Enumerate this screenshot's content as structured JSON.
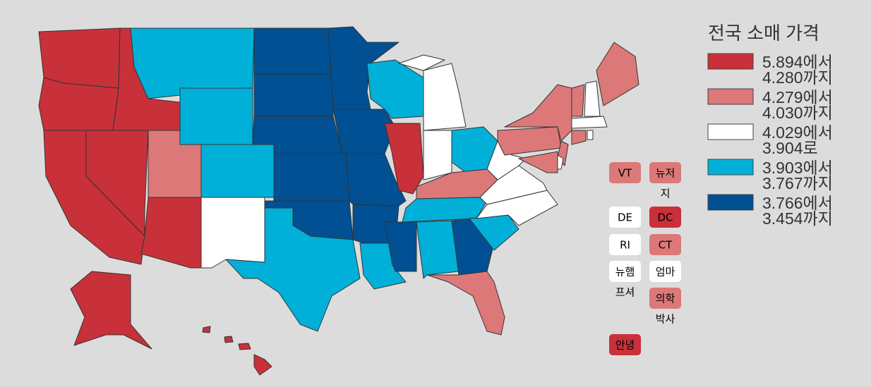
{
  "legend": {
    "title": "전국 소매 가격",
    "items": [
      {
        "color": "#c8313a",
        "lines": [
          "5.894에서",
          "4.280까지"
        ]
      },
      {
        "color": "#dd7878",
        "lines": [
          "4.279에서",
          "4.030까지"
        ]
      },
      {
        "color": "#ffffff",
        "lines": [
          "4.029에서",
          "3.904로"
        ]
      },
      {
        "color": "#00b0d8",
        "lines": [
          "3.903에서",
          "3.767까지"
        ]
      },
      {
        "color": "#005093",
        "lines": [
          "3.766에서",
          "3.454까지"
        ]
      }
    ]
  },
  "small_states": [
    {
      "lines": [
        "VT"
      ]
    },
    {
      "lines": [
        "뉴저",
        "지"
      ]
    },
    {
      "lines": [
        "DE"
      ]
    },
    {
      "lines": [
        "DC"
      ]
    },
    {
      "lines": [
        "RI"
      ]
    },
    {
      "lines": [
        "CT"
      ]
    },
    {
      "lines": [
        "뉴햄",
        "프셔"
      ]
    },
    {
      "lines": [
        "엄마"
      ]
    },
    {
      "lines": [
        "의학",
        "박사"
      ]
    },
    {
      "lines": [
        "안녕"
      ]
    }
  ]
}
